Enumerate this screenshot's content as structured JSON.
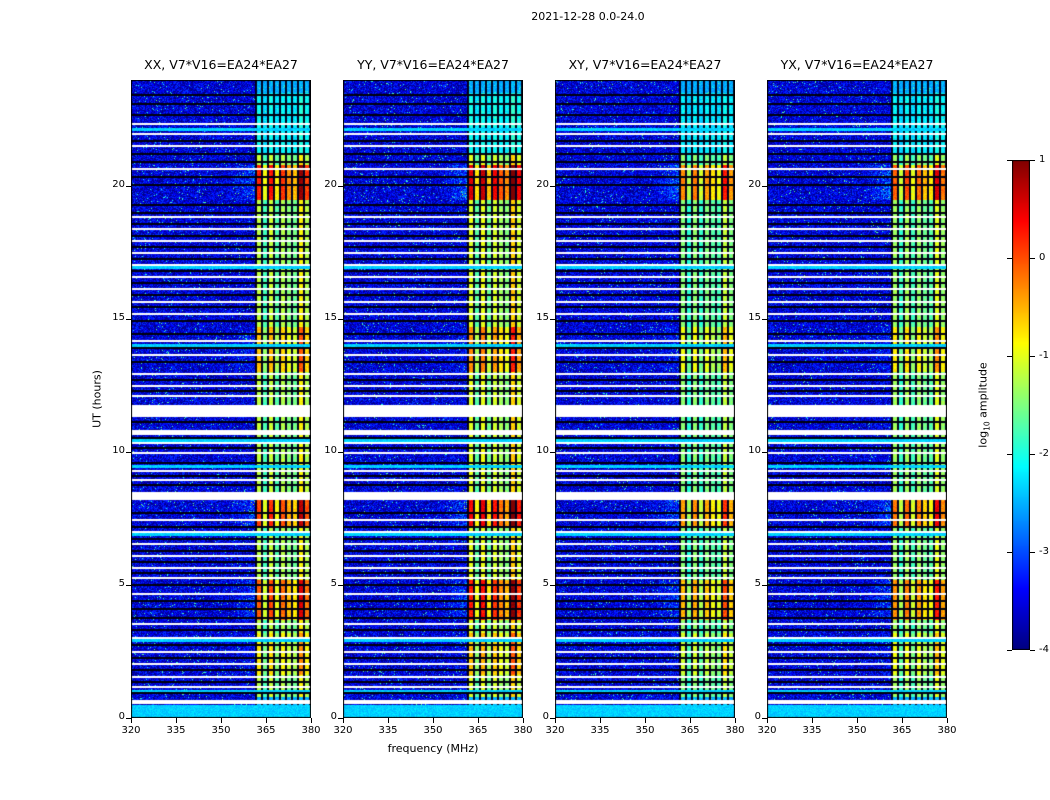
{
  "chart_data": {
    "type": "heatmap",
    "title": "2021-12-28 0.0-24.0",
    "xlabel": "frequency (MHz)",
    "ylabel": "UT (hours)",
    "x_range": [
      320,
      380
    ],
    "x_ticks": [
      320,
      335,
      350,
      365,
      380
    ],
    "y_range": [
      0,
      24
    ],
    "y_ticks": [
      0,
      5,
      10,
      15,
      20
    ],
    "panels": [
      {
        "title": "XX, V7*V16=EA24*EA27",
        "gain": 1.0,
        "seed": 101
      },
      {
        "title": "YY, V7*V16=EA24*EA27",
        "gain": 1.12,
        "seed": 202
      },
      {
        "title": "XY, V7*V16=EA24*EA27",
        "gain": 0.82,
        "seed": 303
      },
      {
        "title": "YX, V7*V16=EA24*EA27",
        "gain": 0.9,
        "seed": 404
      }
    ],
    "colorbar": {
      "label": "log10 amplitude",
      "label_prefix": "log",
      "label_sub": "10",
      "label_suffix": " amplitude",
      "min": -4,
      "max": 1,
      "ticks": [
        1,
        0,
        -1,
        -2,
        -3,
        -4
      ],
      "colormap": "jet"
    },
    "render": {
      "background_level": -3.55,
      "noise_amplitude": 0.55,
      "band": {
        "f0": 361.5,
        "f1": 379.5,
        "base_level": -2.6,
        "peak_level": 0.6,
        "channel_width_mhz": 2.0
      },
      "time_envelope": [
        {
          "t0": 0.8,
          "t1": 21.2,
          "g": 0.5
        },
        {
          "t0": 19.5,
          "t1": 20.8,
          "g": 1.0
        },
        {
          "t0": 13.0,
          "t1": 14.7,
          "g": 0.72
        },
        {
          "t0": 7.2,
          "t1": 8.2,
          "g": 0.95
        },
        {
          "t0": 3.7,
          "t1": 5.2,
          "g": 0.9
        },
        {
          "t0": 1.6,
          "t1": 3.2,
          "g": 0.65
        },
        {
          "t0": 21.2,
          "t1": 23.5,
          "g": 0.18
        }
      ],
      "stripes": [
        [
          23.45,
          0.09,
          "k"
        ],
        [
          23.1,
          0.09,
          "k"
        ],
        [
          22.7,
          0.09,
          "k"
        ],
        [
          22.35,
          0.06,
          "w"
        ],
        [
          22.15,
          0.12,
          "c"
        ],
        [
          21.95,
          0.06,
          "w"
        ],
        [
          21.7,
          0.09,
          "k"
        ],
        [
          21.5,
          0.06,
          "w"
        ],
        [
          21.2,
          0.09,
          "k"
        ],
        [
          20.9,
          0.09,
          "k"
        ],
        [
          20.65,
          0.06,
          "w"
        ],
        [
          20.35,
          0.07,
          "k"
        ],
        [
          20.05,
          0.07,
          "k"
        ],
        [
          19.3,
          0.09,
          "k"
        ],
        [
          19.0,
          0.09,
          "k"
        ],
        [
          18.85,
          0.06,
          "w"
        ],
        [
          18.6,
          0.09,
          "k"
        ],
        [
          18.4,
          0.06,
          "w"
        ],
        [
          18.15,
          0.09,
          "k"
        ],
        [
          17.95,
          0.06,
          "w"
        ],
        [
          17.7,
          0.09,
          "k"
        ],
        [
          17.5,
          0.06,
          "w"
        ],
        [
          17.25,
          0.09,
          "k"
        ],
        [
          17.05,
          0.06,
          "w"
        ],
        [
          16.95,
          0.12,
          "c"
        ],
        [
          16.8,
          0.09,
          "k"
        ],
        [
          16.6,
          0.06,
          "w"
        ],
        [
          16.35,
          0.09,
          "k"
        ],
        [
          16.15,
          0.06,
          "w"
        ],
        [
          15.9,
          0.09,
          "k"
        ],
        [
          15.65,
          0.06,
          "w"
        ],
        [
          15.45,
          0.09,
          "k"
        ],
        [
          15.2,
          0.06,
          "w"
        ],
        [
          14.95,
          0.09,
          "k"
        ],
        [
          14.45,
          0.09,
          "k"
        ],
        [
          14.2,
          0.06,
          "w"
        ],
        [
          14.0,
          0.12,
          "c"
        ],
        [
          13.9,
          0.09,
          "k"
        ],
        [
          13.65,
          0.06,
          "w"
        ],
        [
          13.4,
          0.09,
          "k"
        ],
        [
          12.95,
          0.06,
          "w"
        ],
        [
          12.7,
          0.09,
          "k"
        ],
        [
          12.5,
          0.06,
          "w"
        ],
        [
          12.3,
          0.09,
          "k"
        ],
        [
          12.1,
          0.06,
          "w"
        ],
        [
          11.55,
          0.45,
          "w"
        ],
        [
          11.15,
          0.09,
          "k"
        ],
        [
          10.75,
          0.2,
          "w"
        ],
        [
          10.55,
          0.09,
          "k"
        ],
        [
          10.45,
          0.12,
          "c"
        ],
        [
          10.35,
          0.06,
          "w"
        ],
        [
          10.15,
          0.09,
          "k"
        ],
        [
          9.95,
          0.06,
          "w"
        ],
        [
          9.6,
          0.09,
          "k"
        ],
        [
          9.45,
          0.12,
          "c"
        ],
        [
          9.3,
          0.06,
          "w"
        ],
        [
          9.1,
          0.09,
          "k"
        ],
        [
          8.95,
          0.06,
          "w"
        ],
        [
          8.75,
          0.09,
          "k"
        ],
        [
          8.35,
          0.3,
          "w"
        ],
        [
          7.7,
          0.09,
          "k"
        ],
        [
          7.45,
          0.06,
          "w"
        ],
        [
          7.2,
          0.09,
          "k"
        ],
        [
          7.0,
          0.06,
          "w"
        ],
        [
          6.9,
          0.12,
          "c"
        ],
        [
          6.75,
          0.09,
          "k"
        ],
        [
          6.55,
          0.06,
          "w"
        ],
        [
          6.3,
          0.09,
          "k"
        ],
        [
          6.1,
          0.06,
          "w"
        ],
        [
          5.85,
          0.09,
          "k"
        ],
        [
          5.65,
          0.06,
          "w"
        ],
        [
          5.45,
          0.09,
          "k"
        ],
        [
          5.25,
          0.06,
          "w"
        ],
        [
          5.0,
          0.09,
          "k"
        ],
        [
          4.65,
          0.06,
          "w"
        ],
        [
          4.4,
          0.09,
          "k"
        ],
        [
          4.1,
          0.09,
          "k"
        ],
        [
          3.75,
          0.09,
          "k"
        ],
        [
          3.55,
          0.06,
          "w"
        ],
        [
          3.3,
          0.09,
          "k"
        ],
        [
          3.0,
          0.06,
          "w"
        ],
        [
          2.9,
          0.12,
          "c"
        ],
        [
          2.75,
          0.09,
          "k"
        ],
        [
          2.5,
          0.06,
          "w"
        ],
        [
          2.25,
          0.09,
          "k"
        ],
        [
          2.05,
          0.06,
          "w"
        ],
        [
          1.8,
          0.09,
          "k"
        ],
        [
          1.55,
          0.06,
          "w"
        ],
        [
          1.35,
          0.09,
          "k"
        ],
        [
          1.15,
          0.06,
          "w"
        ],
        [
          1.0,
          0.12,
          "c"
        ],
        [
          0.95,
          0.09,
          "k"
        ],
        [
          0.62,
          0.15,
          "w"
        ],
        [
          0.28,
          0.45,
          "c"
        ]
      ]
    }
  }
}
